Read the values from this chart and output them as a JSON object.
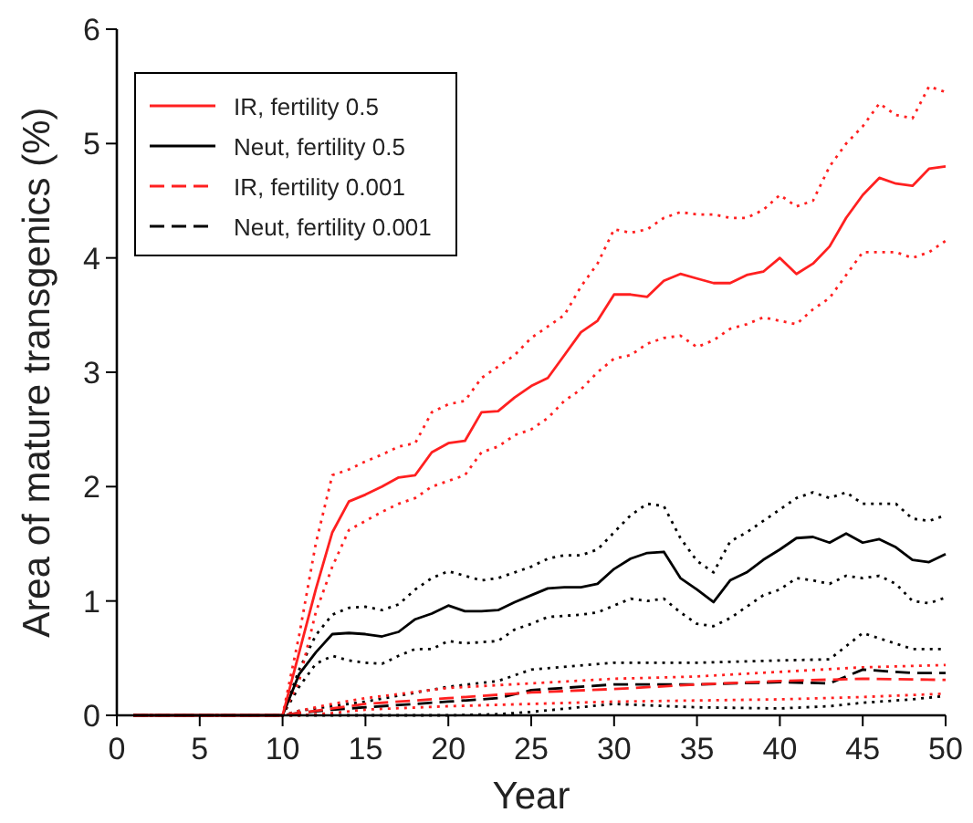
{
  "chart_data": {
    "type": "line",
    "xlabel": "Year",
    "ylabel": "Area of mature transgenics (%)",
    "xlim": [
      0,
      50
    ],
    "ylim": [
      0,
      6
    ],
    "xticks": [
      0,
      5,
      10,
      15,
      20,
      25,
      30,
      35,
      40,
      45,
      50
    ],
    "yticks": [
      0,
      1,
      2,
      3,
      4,
      5,
      6
    ],
    "legend": "top left",
    "grid": false,
    "series": [
      {
        "name": "IR, fertility 0.5",
        "color": "#ff2020",
        "line_style": "solid",
        "x": [
          1,
          10,
          11,
          12,
          13,
          14,
          15,
          16,
          17,
          18,
          19,
          20,
          21,
          22,
          23,
          24,
          25,
          26,
          27,
          28,
          29,
          30,
          31,
          32,
          33,
          34,
          35,
          36,
          37,
          38,
          39,
          40,
          41,
          42,
          43,
          44,
          45,
          46,
          47,
          48,
          49,
          50
        ],
        "values": [
          0,
          0,
          0.55,
          1.1,
          1.6,
          1.87,
          1.93,
          2.0,
          2.08,
          2.1,
          2.3,
          2.38,
          2.4,
          2.65,
          2.66,
          2.78,
          2.88,
          2.95,
          3.15,
          3.35,
          3.45,
          3.68,
          3.68,
          3.66,
          3.8,
          3.86,
          3.82,
          3.78,
          3.78,
          3.85,
          3.88,
          4.0,
          3.86,
          3.95,
          4.1,
          4.35,
          4.55,
          4.7,
          4.65,
          4.63,
          4.78,
          4.8
        ]
      },
      {
        "name": "Neut, fertility 0.5",
        "color": "#000000",
        "line_style": "solid",
        "x": [
          1,
          10,
          11,
          12,
          13,
          14,
          15,
          16,
          17,
          18,
          19,
          20,
          21,
          22,
          23,
          24,
          25,
          26,
          27,
          28,
          29,
          30,
          31,
          32,
          33,
          34,
          35,
          36,
          37,
          38,
          39,
          40,
          41,
          42,
          43,
          44,
          45,
          46,
          47,
          48,
          49,
          50
        ],
        "values": [
          0,
          0,
          0.36,
          0.55,
          0.71,
          0.72,
          0.71,
          0.69,
          0.73,
          0.84,
          0.89,
          0.96,
          0.91,
          0.91,
          0.92,
          0.99,
          1.05,
          1.11,
          1.12,
          1.12,
          1.15,
          1.28,
          1.37,
          1.42,
          1.43,
          1.2,
          1.1,
          0.99,
          1.18,
          1.25,
          1.36,
          1.45,
          1.55,
          1.56,
          1.51,
          1.59,
          1.51,
          1.54,
          1.47,
          1.36,
          1.34,
          1.41
        ]
      },
      {
        "name": "IR, fertility 0.001",
        "color": "#ff2020",
        "line_style": "dashed",
        "x": [
          1,
          10,
          11,
          13,
          15,
          20,
          25,
          30,
          35,
          40,
          45,
          50
        ],
        "values": [
          0,
          0,
          0.02,
          0.06,
          0.1,
          0.15,
          0.2,
          0.23,
          0.27,
          0.3,
          0.32,
          0.31
        ]
      },
      {
        "name": "Neut, fertility 0.001",
        "color": "#000000",
        "line_style": "dashed",
        "x": [
          1,
          10,
          11,
          13,
          15,
          20,
          23,
          25,
          30,
          35,
          40,
          43,
          45,
          48,
          50
        ],
        "values": [
          0,
          0,
          0.02,
          0.05,
          0.07,
          0.12,
          0.15,
          0.22,
          0.27,
          0.27,
          0.29,
          0.28,
          0.4,
          0.37,
          0.37
        ]
      },
      {
        "color": "#ff2020",
        "line_style": "dotted",
        "x": [
          1,
          10,
          11,
          12,
          13,
          14,
          15,
          16,
          17,
          18,
          19,
          20,
          21,
          22,
          23,
          24,
          25,
          26,
          27,
          28,
          29,
          30,
          31,
          32,
          33,
          34,
          35,
          36,
          37,
          38,
          39,
          40,
          41,
          42,
          43,
          44,
          45,
          46,
          47,
          48,
          49,
          50
        ],
        "values": [
          0,
          0,
          0.7,
          1.5,
          2.1,
          2.15,
          2.22,
          2.28,
          2.35,
          2.38,
          2.65,
          2.72,
          2.75,
          2.95,
          3.05,
          3.15,
          3.3,
          3.4,
          3.5,
          3.75,
          3.95,
          4.25,
          4.22,
          4.25,
          4.35,
          4.4,
          4.38,
          4.38,
          4.35,
          4.35,
          4.42,
          4.55,
          4.45,
          4.5,
          4.8,
          5.0,
          5.15,
          5.35,
          5.25,
          5.22,
          5.5,
          5.45
        ]
      },
      {
        "color": "#ff2020",
        "line_style": "dotted",
        "x": [
          1,
          10,
          11,
          12,
          13,
          14,
          15,
          16,
          17,
          18,
          19,
          20,
          21,
          22,
          23,
          24,
          25,
          26,
          27,
          28,
          29,
          30,
          31,
          32,
          33,
          34,
          35,
          36,
          37,
          38,
          39,
          40,
          41,
          42,
          43,
          44,
          45,
          46,
          47,
          48,
          49,
          50
        ],
        "values": [
          0,
          0,
          0.3,
          0.9,
          1.3,
          1.62,
          1.7,
          1.78,
          1.85,
          1.9,
          2.0,
          2.05,
          2.1,
          2.3,
          2.35,
          2.45,
          2.5,
          2.6,
          2.75,
          2.85,
          3.0,
          3.12,
          3.15,
          3.25,
          3.3,
          3.32,
          3.22,
          3.28,
          3.38,
          3.42,
          3.48,
          3.45,
          3.42,
          3.55,
          3.65,
          3.85,
          4.05,
          4.05,
          4.05,
          4.0,
          4.05,
          4.15
        ]
      },
      {
        "color": "#000000",
        "line_style": "dotted",
        "x": [
          1,
          10,
          11,
          12,
          13,
          14,
          15,
          16,
          17,
          18,
          19,
          20,
          21,
          22,
          23,
          24,
          25,
          26,
          27,
          28,
          29,
          30,
          31,
          32,
          33,
          34,
          35,
          36,
          37,
          38,
          39,
          40,
          41,
          42,
          43,
          44,
          45,
          46,
          47,
          48,
          49,
          50
        ],
        "values": [
          0,
          0,
          0.4,
          0.7,
          0.88,
          0.94,
          0.95,
          0.92,
          0.97,
          1.1,
          1.2,
          1.26,
          1.22,
          1.18,
          1.2,
          1.25,
          1.3,
          1.37,
          1.4,
          1.4,
          1.45,
          1.6,
          1.75,
          1.85,
          1.83,
          1.55,
          1.35,
          1.25,
          1.52,
          1.6,
          1.7,
          1.8,
          1.9,
          1.95,
          1.9,
          1.95,
          1.85,
          1.85,
          1.85,
          1.72,
          1.7,
          1.75
        ]
      },
      {
        "color": "#000000",
        "line_style": "dotted",
        "x": [
          1,
          10,
          11,
          12,
          13,
          14,
          15,
          16,
          17,
          18,
          19,
          20,
          21,
          22,
          23,
          24,
          25,
          26,
          27,
          28,
          29,
          30,
          31,
          32,
          33,
          34,
          35,
          36,
          37,
          38,
          39,
          40,
          41,
          42,
          43,
          44,
          45,
          46,
          47,
          48,
          49,
          50
        ],
        "values": [
          0,
          0,
          0.25,
          0.45,
          0.52,
          0.48,
          0.46,
          0.45,
          0.52,
          0.58,
          0.58,
          0.65,
          0.63,
          0.64,
          0.65,
          0.75,
          0.8,
          0.86,
          0.87,
          0.88,
          0.9,
          0.96,
          1.02,
          1.0,
          1.02,
          0.9,
          0.8,
          0.78,
          0.85,
          0.95,
          1.05,
          1.1,
          1.2,
          1.18,
          1.15,
          1.22,
          1.2,
          1.22,
          1.15,
          1.0,
          0.98,
          1.03
        ]
      },
      {
        "color": "#ff2020",
        "line_style": "dotted",
        "x": [
          1,
          10,
          11,
          13,
          15,
          20,
          25,
          30,
          35,
          40,
          45,
          50
        ],
        "values": [
          0,
          0,
          0.04,
          0.1,
          0.15,
          0.24,
          0.28,
          0.32,
          0.34,
          0.38,
          0.42,
          0.44
        ]
      },
      {
        "color": "#ff2020",
        "line_style": "dotted",
        "x": [
          1,
          10,
          11,
          13,
          15,
          20,
          25,
          30,
          35,
          40,
          45,
          50
        ],
        "values": [
          0,
          0,
          0,
          0.02,
          0.05,
          0.08,
          0.1,
          0.12,
          0.13,
          0.14,
          0.16,
          0.19
        ]
      },
      {
        "color": "#000000",
        "line_style": "dotted",
        "x": [
          1,
          10,
          11,
          13,
          15,
          20,
          23,
          25,
          30,
          35,
          40,
          43,
          45,
          48,
          50
        ],
        "values": [
          0,
          0,
          0.04,
          0.08,
          0.12,
          0.25,
          0.3,
          0.4,
          0.46,
          0.46,
          0.48,
          0.49,
          0.72,
          0.58,
          0.58
        ]
      },
      {
        "color": "#000000",
        "line_style": "dotted",
        "x": [
          1,
          10,
          11,
          13,
          15,
          20,
          23,
          25,
          30,
          35,
          40,
          43,
          45,
          48,
          50
        ],
        "values": [
          0,
          0,
          0,
          0,
          0,
          0,
          0.01,
          0.03,
          0.1,
          0.07,
          0.06,
          0.08,
          0.11,
          0.14,
          0.17
        ]
      }
    ]
  }
}
